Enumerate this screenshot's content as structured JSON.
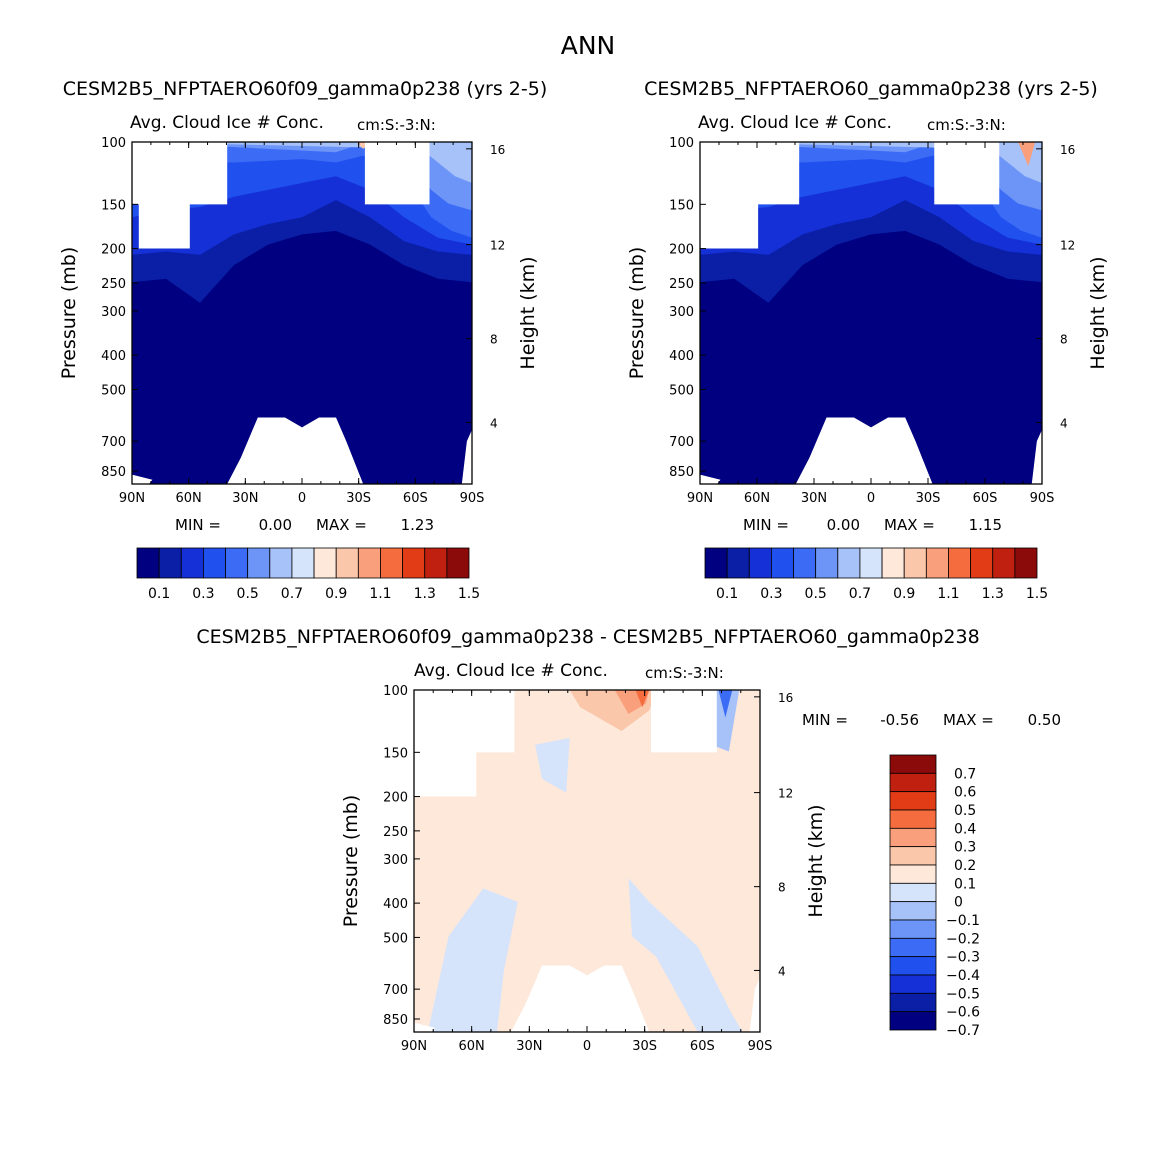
{
  "page_title": "ANN",
  "chart_data": [
    {
      "type": "heatmap",
      "id": "panel1",
      "case_title": "CESM2B5_NFPTAERO60f09_gamma0p238 (yrs 2-5)",
      "variable": "Avg. Cloud Ice # Conc.",
      "units": "cm:S:-3:N:",
      "ylabel": "Pressure (mb)",
      "ylabel_right": "Height (km)",
      "xlabel": "",
      "x_ticks": [
        "90N",
        "60N",
        "30N",
        "0",
        "30S",
        "60S",
        "90S"
      ],
      "y_ticks": [
        "100",
        "150",
        "200",
        "250",
        "300",
        "400",
        "500",
        "700",
        "850"
      ],
      "y_ticks_right": [
        "16",
        "12",
        "8",
        "4"
      ],
      "ylim_mb": [
        100,
        925
      ],
      "stats": {
        "min_label": "MIN =",
        "min": "0.00",
        "max_label": "MAX =",
        "max": "1.23"
      },
      "colorbar": {
        "levels": [
          0.1,
          0.2,
          0.3,
          0.4,
          0.5,
          0.6,
          0.7,
          0.8,
          0.9,
          1.0,
          1.1,
          1.2,
          1.3,
          1.4,
          1.5
        ],
        "labels": [
          "0.1",
          "0.3",
          "0.5",
          "0.7",
          "0.9",
          "1.1",
          "1.3",
          "1.5"
        ],
        "colors": [
          "#000080",
          "#0a1fa6",
          "#1430d6",
          "#2050ee",
          "#3c6cf5",
          "#6c95f7",
          "#a7c1f9",
          "#d6e4fb",
          "#fde8da",
          "#fbc7ab",
          "#f99f7b",
          "#f56d3e",
          "#e23c17",
          "#bf2010",
          "#8b0a0a"
        ]
      }
    },
    {
      "type": "heatmap",
      "id": "panel2",
      "case_title": "CESM2B5_NFPTAERO60_gamma0p238 (yrs 2-5)",
      "variable": "Avg. Cloud Ice # Conc.",
      "units": "cm:S:-3:N:",
      "ylabel": "Pressure (mb)",
      "ylabel_right": "Height (km)",
      "xlabel": "",
      "x_ticks": [
        "90N",
        "60N",
        "30N",
        "0",
        "30S",
        "60S",
        "90S"
      ],
      "y_ticks": [
        "100",
        "150",
        "200",
        "250",
        "300",
        "400",
        "500",
        "700",
        "850"
      ],
      "y_ticks_right": [
        "16",
        "12",
        "8",
        "4"
      ],
      "ylim_mb": [
        100,
        925
      ],
      "stats": {
        "min_label": "MIN =",
        "min": "0.00",
        "max_label": "MAX =",
        "max": "1.15"
      },
      "colorbar": {
        "levels": [
          0.1,
          0.2,
          0.3,
          0.4,
          0.5,
          0.6,
          0.7,
          0.8,
          0.9,
          1.0,
          1.1,
          1.2,
          1.3,
          1.4,
          1.5
        ],
        "labels": [
          "0.1",
          "0.3",
          "0.5",
          "0.7",
          "0.9",
          "1.1",
          "1.3",
          "1.5"
        ],
        "colors": [
          "#000080",
          "#0a1fa6",
          "#1430d6",
          "#2050ee",
          "#3c6cf5",
          "#6c95f7",
          "#a7c1f9",
          "#d6e4fb",
          "#fde8da",
          "#fbc7ab",
          "#f99f7b",
          "#f56d3e",
          "#e23c17",
          "#bf2010",
          "#8b0a0a"
        ]
      }
    },
    {
      "type": "heatmap",
      "id": "panel3",
      "case_title": "CESM2B5_NFPTAERO60f09_gamma0p238 - CESM2B5_NFPTAERO60_gamma0p238",
      "variable": "Avg. Cloud Ice # Conc.",
      "units": "cm:S:-3:N:",
      "ylabel": "Pressure (mb)",
      "ylabel_right": "Height (km)",
      "xlabel": "",
      "x_ticks": [
        "90N",
        "60N",
        "30N",
        "0",
        "30S",
        "60S",
        "90S"
      ],
      "y_ticks": [
        "100",
        "150",
        "200",
        "250",
        "300",
        "400",
        "500",
        "700",
        "850"
      ],
      "y_ticks_right": [
        "16",
        "12",
        "8",
        "4"
      ],
      "ylim_mb": [
        100,
        925
      ],
      "stats": {
        "min_label": "MIN =",
        "min": "-0.56",
        "max_label": "MAX =",
        "max": "0.50"
      },
      "colorbar": {
        "levels": [
          -0.7,
          -0.6,
          -0.5,
          -0.4,
          -0.3,
          -0.2,
          -0.1,
          0,
          0.1,
          0.2,
          0.3,
          0.4,
          0.5,
          0.6,
          0.7
        ],
        "labels": [
          "0.7",
          "0.6",
          "0.5",
          "0.4",
          "0.3",
          "0.2",
          "0.1",
          "0",
          "-0.1",
          "-0.2",
          "-0.3",
          "-0.4",
          "-0.5",
          "-0.6",
          "-0.7"
        ],
        "colors": [
          "#000080",
          "#0a1fa6",
          "#1430d6",
          "#2050ee",
          "#3c6cf5",
          "#6c95f7",
          "#a7c1f9",
          "#d6e4fb",
          "#fde8da",
          "#fbc7ab",
          "#f99f7b",
          "#f56d3e",
          "#e23c17",
          "#bf2010",
          "#8b0a0a"
        ]
      }
    }
  ]
}
